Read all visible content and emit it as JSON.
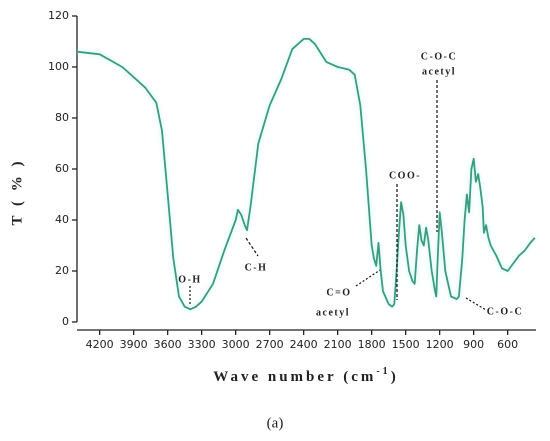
{
  "chart_data": {
    "type": "line",
    "ylabel": "T ( % )",
    "xlabel": {
      "text": "Wave number (cm",
      "superscript": "-1",
      "suffix": ")"
    },
    "caption": "(a)",
    "x": [
      4400,
      4200,
      4000,
      3900,
      3800,
      3700,
      3650,
      3600,
      3550,
      3500,
      3450,
      3400,
      3350,
      3300,
      3200,
      3100,
      3000,
      2980,
      2950,
      2920,
      2900,
      2870,
      2800,
      2700,
      2600,
      2500,
      2400,
      2350,
      2300,
      2200,
      2100,
      2000,
      1950,
      1900,
      1850,
      1800,
      1780,
      1760,
      1740,
      1720,
      1700,
      1650,
      1620,
      1600,
      1580,
      1560,
      1540,
      1520,
      1500,
      1470,
      1440,
      1420,
      1400,
      1380,
      1360,
      1340,
      1320,
      1300,
      1270,
      1240,
      1230,
      1220,
      1200,
      1180,
      1150,
      1100,
      1050,
      1030,
      1000,
      980,
      960,
      940,
      920,
      900,
      880,
      860,
      840,
      820,
      810,
      790,
      770,
      750,
      700,
      650,
      600,
      550,
      500,
      450,
      400,
      360
    ],
    "values": [
      106,
      105,
      100,
      96,
      92,
      86,
      75,
      50,
      25,
      10,
      6,
      5,
      6,
      8,
      15,
      28,
      40,
      44,
      42,
      38,
      36,
      45,
      70,
      85,
      95,
      107,
      111,
      111,
      109,
      102,
      100,
      99,
      97,
      85,
      60,
      30,
      25,
      22,
      31,
      20,
      12,
      7,
      6,
      7,
      20,
      35,
      47,
      42,
      30,
      20,
      16,
      15,
      28,
      38,
      32,
      30,
      37,
      32,
      20,
      12,
      10,
      22,
      43,
      35,
      20,
      10,
      9,
      10,
      25,
      40,
      50,
      43,
      60,
      64,
      55,
      58,
      52,
      45,
      35,
      38,
      33,
      30,
      26,
      21,
      20,
      23,
      26,
      28,
      31,
      33
    ],
    "color": "#3d9a7c",
    "xlim": [
      4400,
      350
    ],
    "ylim": [
      0,
      120
    ],
    "xticks": [
      4200,
      3900,
      3600,
      3300,
      3000,
      2700,
      2400,
      2100,
      1800,
      1500,
      1200,
      900,
      600
    ],
    "yticks": [
      0,
      20,
      40,
      60,
      80,
      100,
      120
    ],
    "annotations": [
      "O-H",
      "C-H",
      "C=O",
      "acetyl",
      "COO-",
      "C-O-C",
      "acetyl",
      "C-O-C"
    ]
  }
}
